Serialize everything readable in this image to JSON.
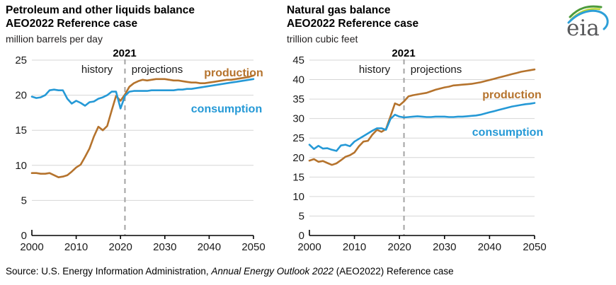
{
  "page": {
    "background": "#ffffff"
  },
  "colors": {
    "production": "#b5732d",
    "consumption": "#2599d6",
    "grid": "#d6d6d6",
    "axis": "#000000",
    "divider": "#a3a3a3",
    "text": "#1a1a1a"
  },
  "logo": {
    "text": "eia",
    "gray": "#58595b",
    "green": "#4c9b3b",
    "lime": "#bcd631",
    "blue": "#2d9fd8"
  },
  "source_note": {
    "prefix": "Source: U.S. Energy Information Administration, ",
    "italic": "Annual Energy Outlook 2022",
    "suffix": " (AEO2022) Reference case"
  },
  "chart_data": [
    {
      "type": "line",
      "title_line1": "Petroleum and other liquids balance",
      "title_line2": "AEO2022 Reference case",
      "unit_label": "million barrels per day",
      "divider_year": 2021,
      "divider_year_label": "2021",
      "history_label": "history",
      "projections_label": "projections",
      "legend_position": "inline-annotations",
      "grid": true,
      "x": {
        "start": 2000,
        "end": 2050,
        "step": 1
      },
      "x_ticks": [
        2000,
        2010,
        2020,
        2030,
        2040,
        2050
      ],
      "y_ticks": [
        0,
        5,
        10,
        15,
        20,
        25
      ],
      "ylim": [
        0,
        25
      ],
      "series": [
        {
          "name": "production",
          "color": "#b5732d",
          "values": [
            8.9,
            8.9,
            8.8,
            8.8,
            8.9,
            8.6,
            8.3,
            8.4,
            8.6,
            9.1,
            9.7,
            10.1,
            11.2,
            12.4,
            14.1,
            15.5,
            15.0,
            15.6,
            17.8,
            19.9,
            19.2,
            20.1,
            21.2,
            21.7,
            22.0,
            22.2,
            22.1,
            22.2,
            22.3,
            22.3,
            22.3,
            22.2,
            22.1,
            22.1,
            22.0,
            21.9,
            21.8,
            21.8,
            21.7,
            21.7,
            21.8,
            21.9,
            22.0,
            22.1,
            22.2,
            22.2,
            22.3,
            22.4,
            22.5,
            22.6,
            22.8
          ]
        },
        {
          "name": "consumption",
          "color": "#2599d6",
          "values": [
            19.8,
            19.6,
            19.7,
            20.0,
            20.7,
            20.8,
            20.7,
            20.7,
            19.5,
            18.8,
            19.2,
            18.9,
            18.5,
            19.0,
            19.1,
            19.5,
            19.7,
            20.0,
            20.5,
            20.5,
            18.1,
            19.9,
            20.5,
            20.6,
            20.6,
            20.6,
            20.6,
            20.7,
            20.7,
            20.7,
            20.7,
            20.7,
            20.7,
            20.8,
            20.8,
            20.9,
            20.9,
            21.0,
            21.1,
            21.2,
            21.3,
            21.4,
            21.5,
            21.6,
            21.7,
            21.8,
            21.9,
            22.0,
            22.1,
            22.2,
            22.3
          ]
        }
      ]
    },
    {
      "type": "line",
      "title_line1": "Natural gas balance",
      "title_line2": "AEO2022 Reference case",
      "unit_label": "trillion cubic feet",
      "divider_year": 2021,
      "divider_year_label": "2021",
      "history_label": "history",
      "projections_label": "projections",
      "legend_position": "inline-annotations",
      "grid": true,
      "x": {
        "start": 2000,
        "end": 2050,
        "step": 1
      },
      "x_ticks": [
        2000,
        2010,
        2020,
        2030,
        2040,
        2050
      ],
      "y_ticks": [
        0,
        5,
        10,
        15,
        20,
        25,
        30,
        35,
        40,
        45
      ],
      "ylim": [
        0,
        45
      ],
      "series": [
        {
          "name": "production",
          "color": "#b5732d",
          "values": [
            19.2,
            19.6,
            18.9,
            19.1,
            18.6,
            18.1,
            18.5,
            19.3,
            20.2,
            20.6,
            21.3,
            22.9,
            24.1,
            24.3,
            25.9,
            27.1,
            26.6,
            27.3,
            30.6,
            33.9,
            33.4,
            34.4,
            35.7,
            36.0,
            36.2,
            36.4,
            36.6,
            37.0,
            37.4,
            37.7,
            38.0,
            38.2,
            38.5,
            38.6,
            38.7,
            38.8,
            38.9,
            39.1,
            39.3,
            39.6,
            39.9,
            40.2,
            40.5,
            40.8,
            41.1,
            41.4,
            41.7,
            42.0,
            42.2,
            42.4,
            42.6
          ]
        },
        {
          "name": "consumption",
          "color": "#2599d6",
          "values": [
            23.3,
            22.2,
            23.0,
            22.3,
            22.4,
            22.0,
            21.7,
            23.1,
            23.3,
            22.9,
            24.1,
            24.8,
            25.5,
            26.2,
            26.9,
            27.5,
            27.5,
            27.1,
            29.9,
            31.0,
            30.5,
            30.3,
            30.4,
            30.5,
            30.6,
            30.5,
            30.4,
            30.4,
            30.5,
            30.5,
            30.5,
            30.4,
            30.4,
            30.5,
            30.5,
            30.6,
            30.7,
            30.8,
            31.0,
            31.3,
            31.6,
            31.9,
            32.2,
            32.5,
            32.8,
            33.1,
            33.3,
            33.5,
            33.7,
            33.8,
            34.0
          ]
        }
      ]
    }
  ]
}
